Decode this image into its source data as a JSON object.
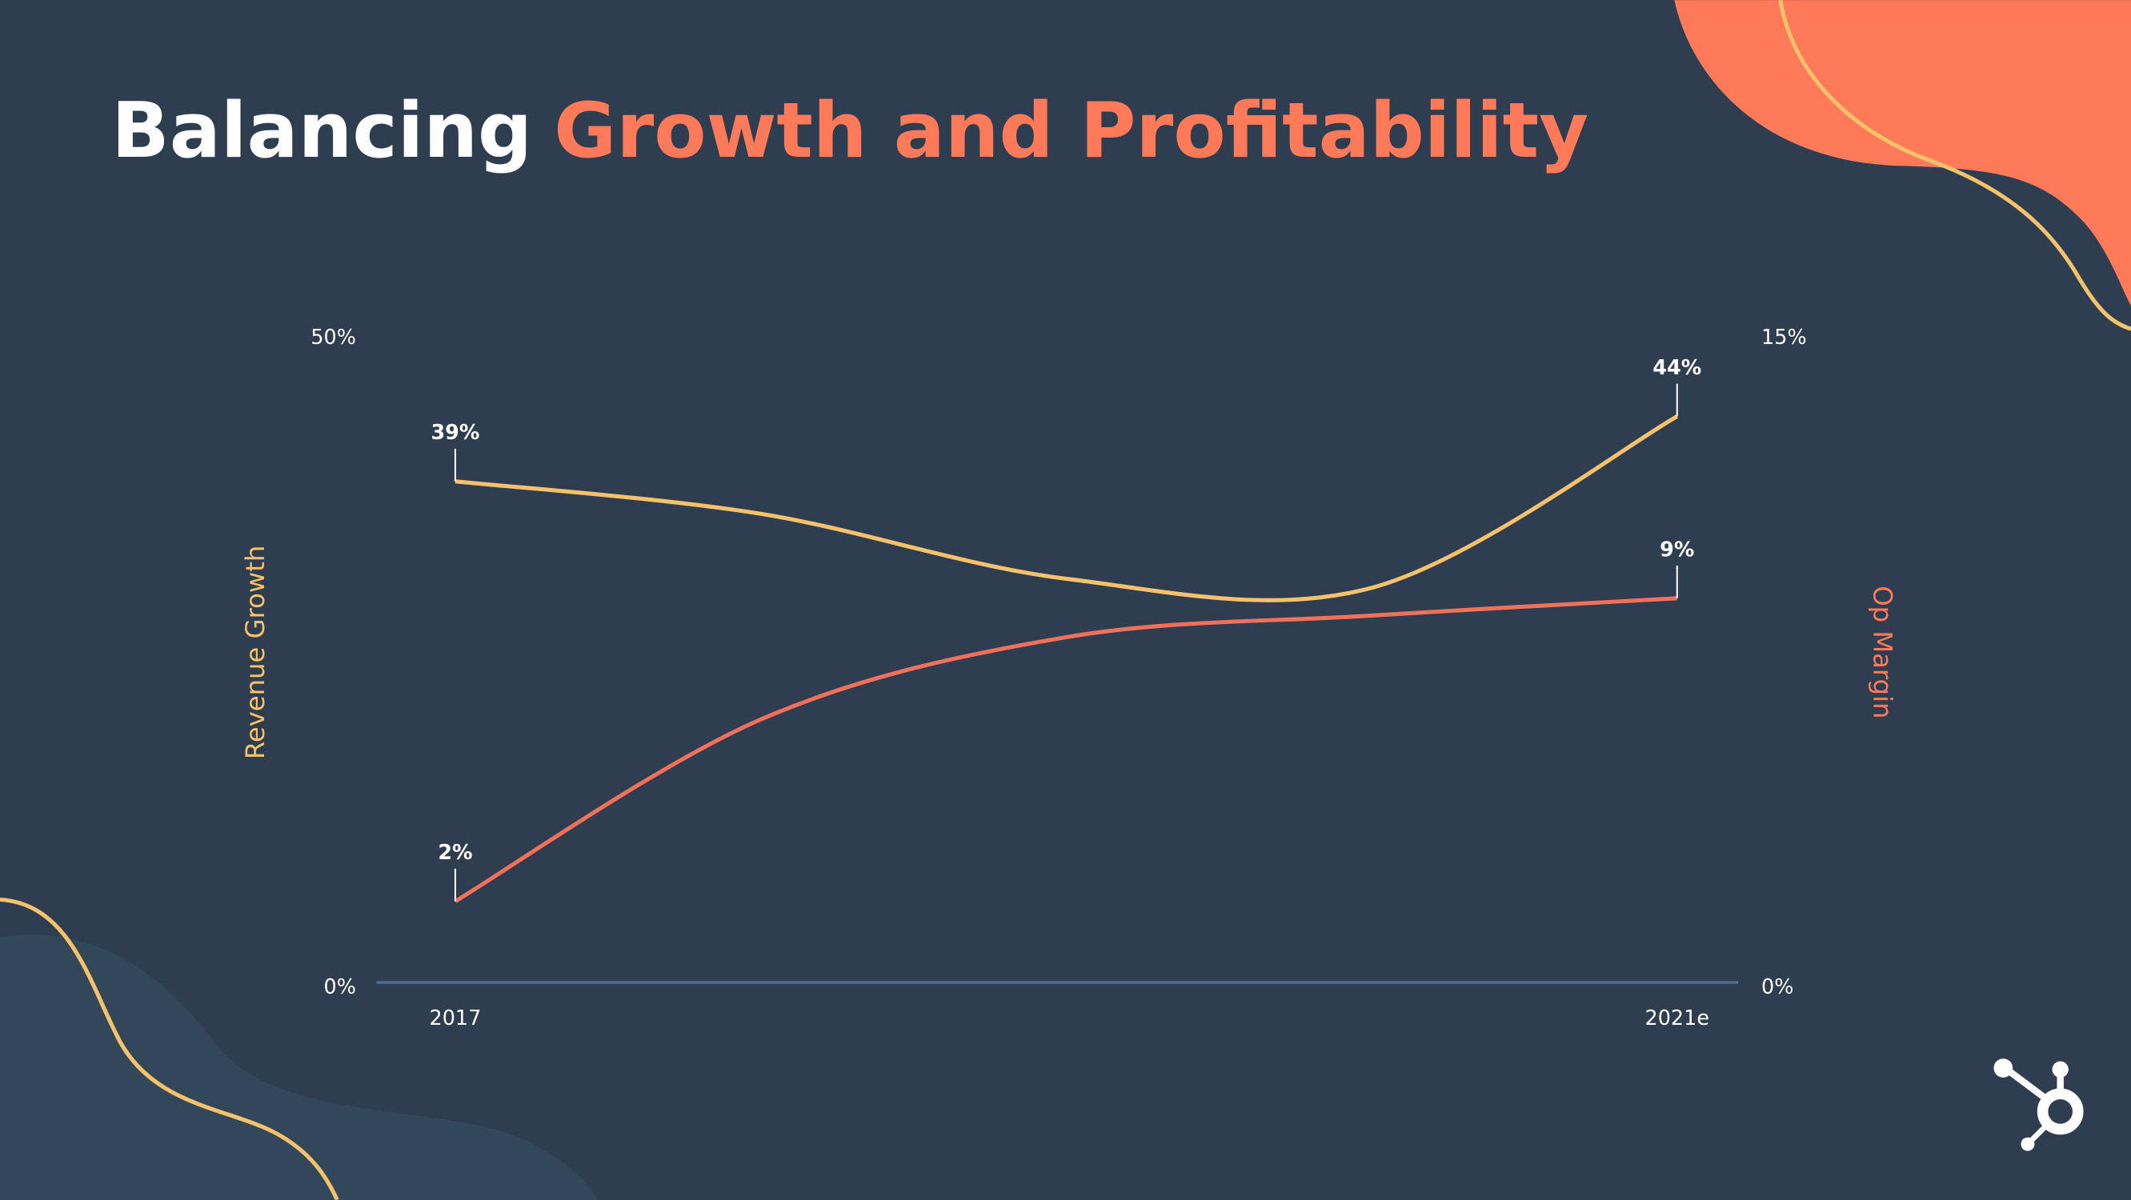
{
  "chart_data": {
    "type": "line",
    "title": "Balancing",
    "title_highlight": "Growth and Profitability",
    "y_label": "Revenue Growth",
    "y2_label": "Op Margin",
    "categories": [
      "2017",
      null,
      null,
      null,
      "2021e"
    ],
    "series": [
      {
        "name": "Revenue Growth",
        "color": "#f5c26b",
        "values": [
          39,
          36.5,
          31.5,
          30.8,
          44
        ],
        "value_labels": [
          "39%",
          null,
          null,
          null,
          "44%"
        ]
      },
      {
        "name": "Op Margin",
        "color": "#f0705a",
        "axis": "y2",
        "values": [
          2,
          6.2,
          8.1,
          8.6,
          9
        ],
        "value_labels": [
          "2%",
          null,
          null,
          null,
          "9%"
        ]
      }
    ],
    "ylim": [
      0,
      50
    ],
    "yticks": [
      {
        "value": 0,
        "label": "0%"
      },
      {
        "value": 50,
        "label": "50%"
      }
    ],
    "y2lim": [
      0,
      15
    ],
    "y2ticks": [
      {
        "value": 0,
        "label": "0%"
      },
      {
        "value": 15,
        "label": "15%"
      }
    ]
  }
}
